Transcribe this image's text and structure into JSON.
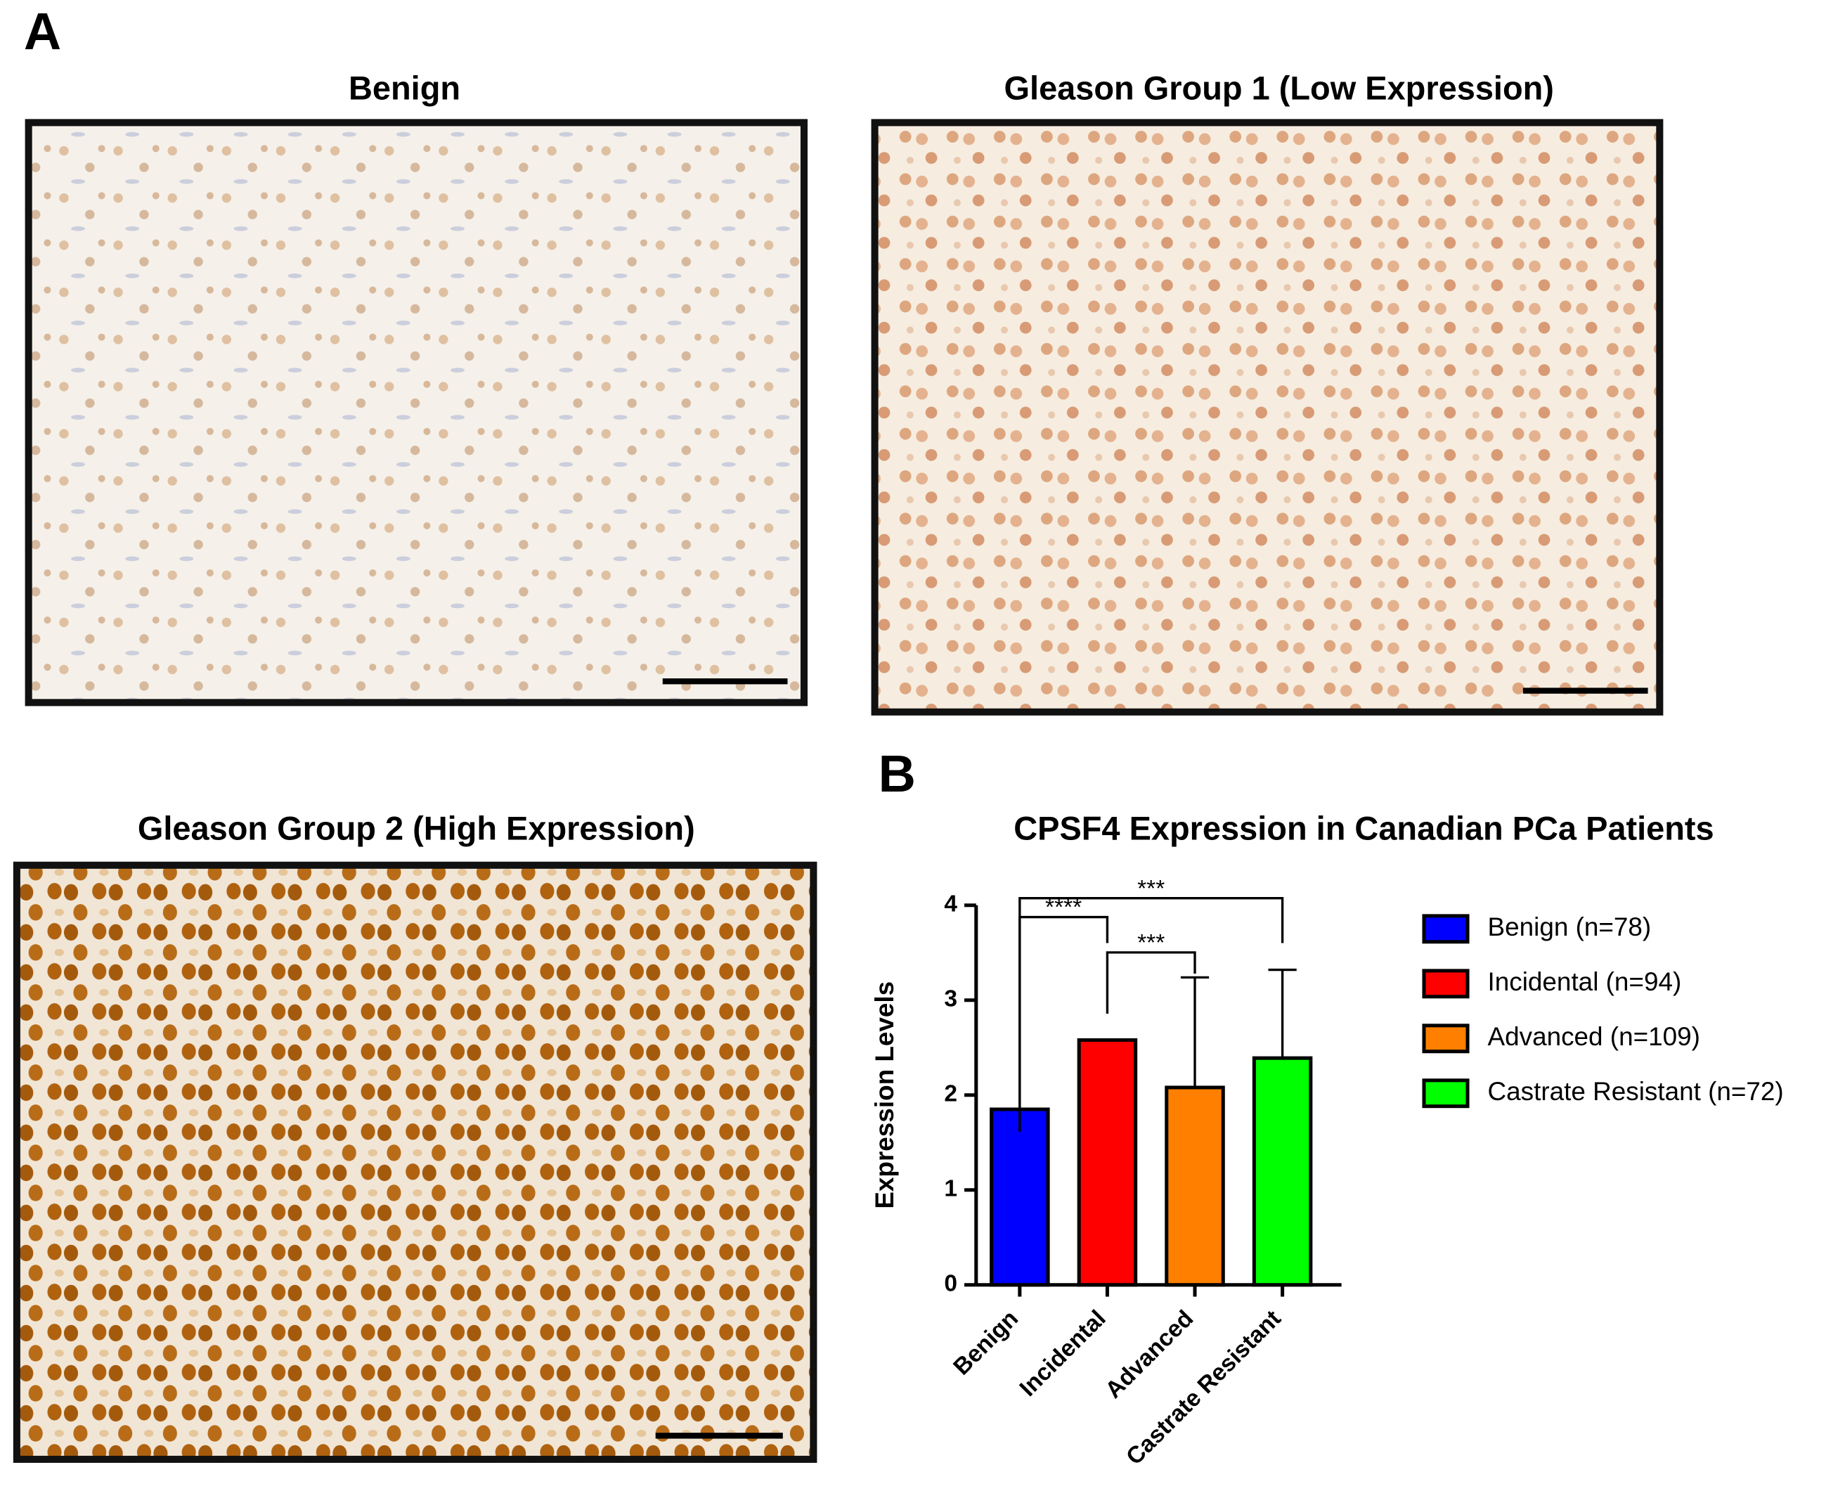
{
  "panel_labels": [
    "A",
    "B"
  ],
  "images": [
    {
      "title": "Benign"
    },
    {
      "title": "Gleason Group 1 (Low Expression)"
    },
    {
      "title": "Gleason Group 2 (High Expression)"
    }
  ],
  "chart_data": {
    "type": "bar",
    "title": "CPSF4 Expression in Canadian PCa Patients",
    "ylabel": "Expression Levels",
    "categories": [
      "Benign",
      "Incidental",
      "Advanced",
      "Castrate Resistant"
    ],
    "values": [
      1.85,
      2.58,
      2.08,
      2.39
    ],
    "errors": [
      null,
      null,
      1.16,
      0.93
    ],
    "colors": [
      "#0000ff",
      "#ff0000",
      "#ff8000",
      "#00ff00"
    ],
    "legend_labels": [
      "Benign (n=78)",
      "Incidental (n=94)",
      "Advanced (n=109)",
      "Castrate Resistant (n=72)"
    ],
    "annotations": [
      "****",
      "***",
      "***"
    ],
    "ylim": [
      0,
      4
    ],
    "yticks": [
      0,
      1,
      2,
      3,
      4
    ],
    "grid": false,
    "legend": "right"
  }
}
